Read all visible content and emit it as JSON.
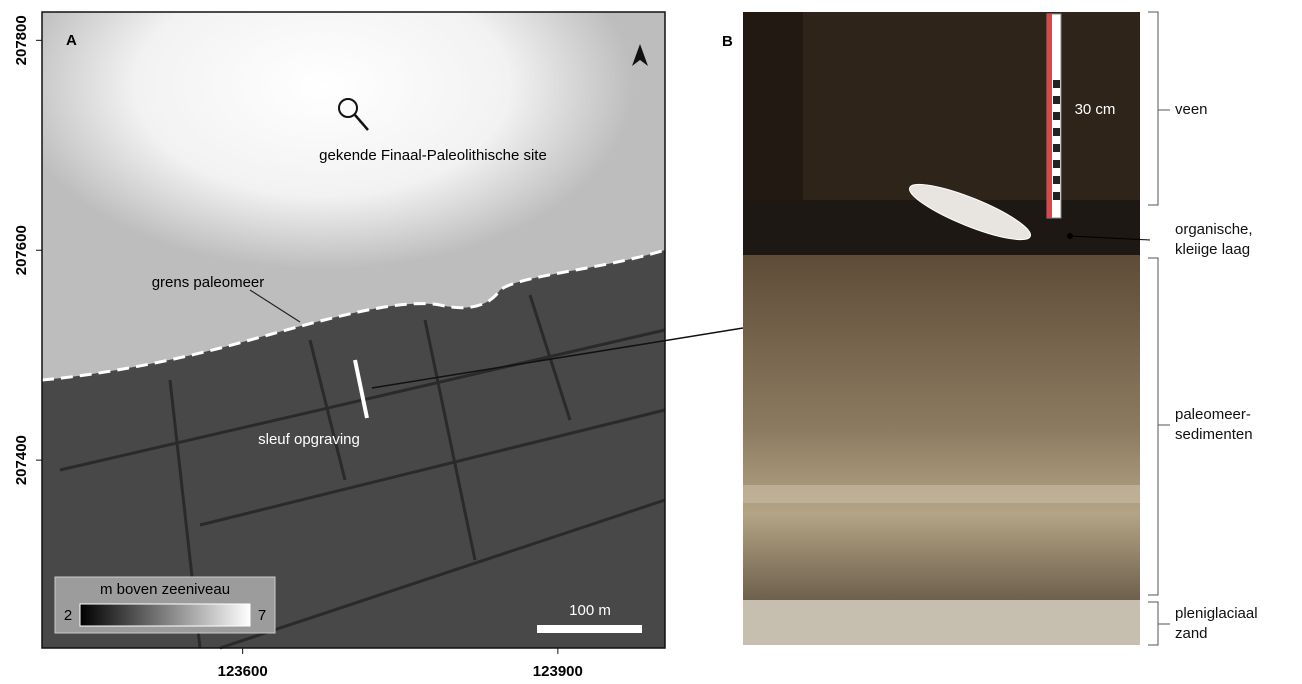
{
  "panel_a": {
    "label": "A",
    "xlim": [
      123409,
      124002
    ],
    "ylim": [
      207221,
      207827
    ],
    "xticks": [
      123600,
      123900
    ],
    "yticks": [
      207400,
      207600,
      207800
    ],
    "annotations": {
      "site": "gekende Finaal-Paleolithische site",
      "boundary": "grens paleomeer",
      "trench": "sleuf opgraving"
    },
    "legend": {
      "title": "m boven zeeniveau",
      "min": 2,
      "max": 7
    },
    "scale_bar": "100 m"
  },
  "panel_b": {
    "label": "B",
    "scale": "30 cm",
    "layers": [
      [
        "veen"
      ],
      [
        "organische,",
        "kleiige laag"
      ],
      [
        "paleomeer-",
        "sedimenten"
      ],
      [
        "pleniglaciaal",
        "zand"
      ]
    ]
  }
}
